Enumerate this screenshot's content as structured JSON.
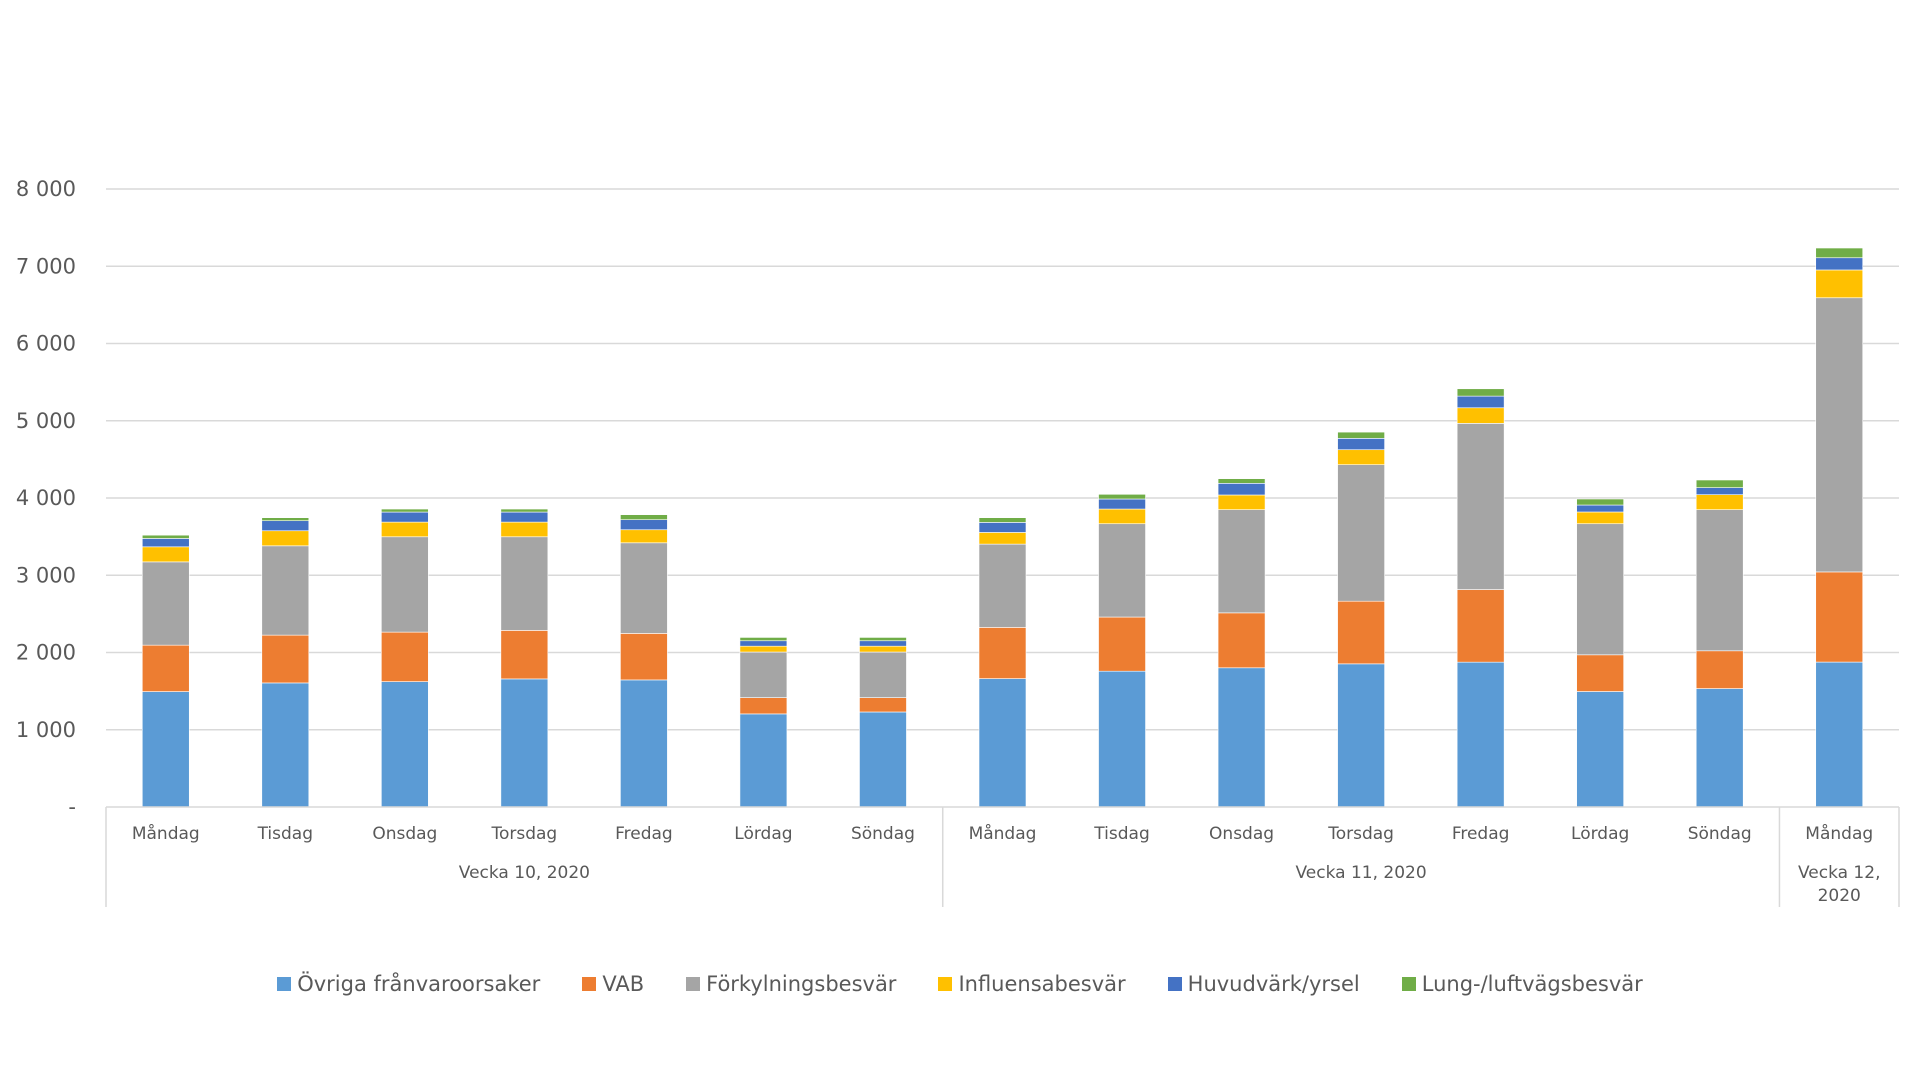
{
  "chart_data": {
    "type": "bar",
    "stacked": true,
    "title": "",
    "xlabel": "",
    "ylabel": "",
    "ylim": [
      0,
      8000
    ],
    "yticks": [
      0,
      1000,
      2000,
      3000,
      4000,
      5000,
      6000,
      7000,
      8000
    ],
    "ytick_labels": [
      "-",
      "1 000",
      "2 000",
      "3 000",
      "4 000",
      "5 000",
      "6 000",
      "7 000",
      "8 000"
    ],
    "grid": true,
    "legend_position": "bottom",
    "categories": [
      "Måndag",
      "Tisdag",
      "Onsdag",
      "Torsdag",
      "Fredag",
      "Lördag",
      "Söndag",
      "Måndag",
      "Tisdag",
      "Onsdag",
      "Torsdag",
      "Fredag",
      "Lördag",
      "Söndag",
      "Måndag"
    ],
    "groups": [
      {
        "label": "Vecka 10, 2020",
        "lines": [
          "Vecka 10, 2020"
        ],
        "count": 7
      },
      {
        "label": "Vecka 11, 2020",
        "lines": [
          "Vecka 11, 2020"
        ],
        "count": 7
      },
      {
        "label": "Vecka 12, 2020",
        "lines": [
          "Vecka 12,",
          "2020"
        ],
        "count": 1
      }
    ],
    "series": [
      {
        "name": "Övriga frånvaroorsaker",
        "color": "#5B9BD5",
        "values": [
          1494,
          1606,
          1623,
          1658,
          1645,
          1205,
          1230,
          1662,
          1758,
          1802,
          1853,
          1875,
          1495,
          1533,
          1876
        ]
      },
      {
        "name": "VAB",
        "color": "#ED7D31",
        "values": [
          601,
          619,
          641,
          628,
          602,
          211,
          186,
          663,
          701,
          711,
          811,
          940,
          475,
          489,
          1167
        ]
      },
      {
        "name": "Förkylningsbesvär",
        "color": "#A5A5A5",
        "values": [
          1078,
          1156,
          1234,
          1212,
          1173,
          590,
          590,
          1078,
          1208,
          1336,
          1767,
          2151,
          1697,
          1827,
          3549
        ]
      },
      {
        "name": "Influensabesvär",
        "color": "#FFC000",
        "values": [
          195,
          195,
          190,
          190,
          169,
          76,
          76,
          151,
          190,
          190,
          194,
          202,
          152,
          194,
          360
        ]
      },
      {
        "name": "Huvudvärk/yrsel",
        "color": "#4472C4",
        "values": [
          108,
          130,
          130,
          130,
          130,
          70,
          70,
          130,
          130,
          151,
          147,
          151,
          90,
          91,
          158
        ]
      },
      {
        "name": "Lung-/luftvägsbesvär",
        "color": "#70AD47",
        "values": [
          43,
          39,
          39,
          39,
          65,
          43,
          43,
          61,
          61,
          60,
          81,
          95,
          78,
          99,
          126
        ]
      }
    ]
  }
}
